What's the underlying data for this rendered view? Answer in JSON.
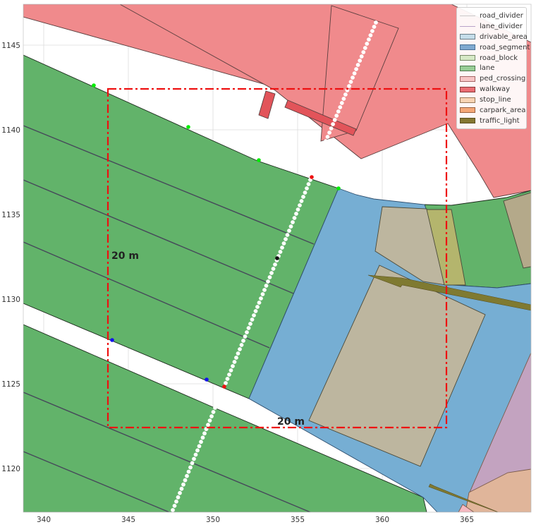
{
  "axes": {
    "x_ticks": [
      "340",
      "345",
      "350",
      "355",
      "360",
      "365"
    ],
    "y_ticks": [
      "1145",
      "1140",
      "1135",
      "1130",
      "1125",
      "1120"
    ]
  },
  "dimension_labels": {
    "height": "20 m",
    "width": "20 m"
  },
  "legend": [
    {
      "key": "road_divider",
      "label": "road_divider",
      "kind": "line",
      "color": "#c8c8c8"
    },
    {
      "key": "lane_divider",
      "label": "lane_divider",
      "kind": "line",
      "color": "#b9a3c9"
    },
    {
      "key": "drivable_area",
      "label": "drivable_area",
      "kind": "patch",
      "fill": "#c5dde9",
      "edge": "#6b7f89"
    },
    {
      "key": "road_segment",
      "label": "road_segment",
      "kind": "patch",
      "fill": "#7fa9d0",
      "edge": "#4a6f94"
    },
    {
      "key": "road_block",
      "label": "road_block",
      "kind": "patch",
      "fill": "#d6e9c6",
      "edge": "#7a8a6a"
    },
    {
      "key": "lane",
      "label": "lane",
      "kind": "patch",
      "fill": "#98cd96",
      "edge": "#4e7a4d"
    },
    {
      "key": "ped_crossing",
      "label": "ped_crossing",
      "kind": "patch",
      "fill": "#f7c6c6",
      "edge": "#a56666"
    },
    {
      "key": "walkway",
      "label": "walkway",
      "kind": "patch",
      "fill": "#ea6e73",
      "edge": "#8a3a3a"
    },
    {
      "key": "stop_line",
      "label": "stop_line",
      "kind": "patch",
      "fill": "#f8d4b4",
      "edge": "#9a7a5a"
    },
    {
      "key": "carpark_area",
      "label": "carpark_area",
      "kind": "patch",
      "fill": "#f4a777",
      "edge": "#9a6040"
    },
    {
      "key": "traffic_light",
      "label": "traffic_light",
      "kind": "patch",
      "fill": "#857732",
      "edge": "#5a4f20"
    }
  ],
  "colors": {
    "lane": "#62b36a",
    "road_segment": "#76aed3",
    "walkway": "#f08a8c",
    "walkway_dark": "#e2545a",
    "carpark": "#e0b59a",
    "parking_bay": "#bdb69f",
    "traffic_light": "#7f7a31",
    "lane_divider": "#46495a",
    "box": "#ee1111",
    "grid": "#dedede"
  }
}
